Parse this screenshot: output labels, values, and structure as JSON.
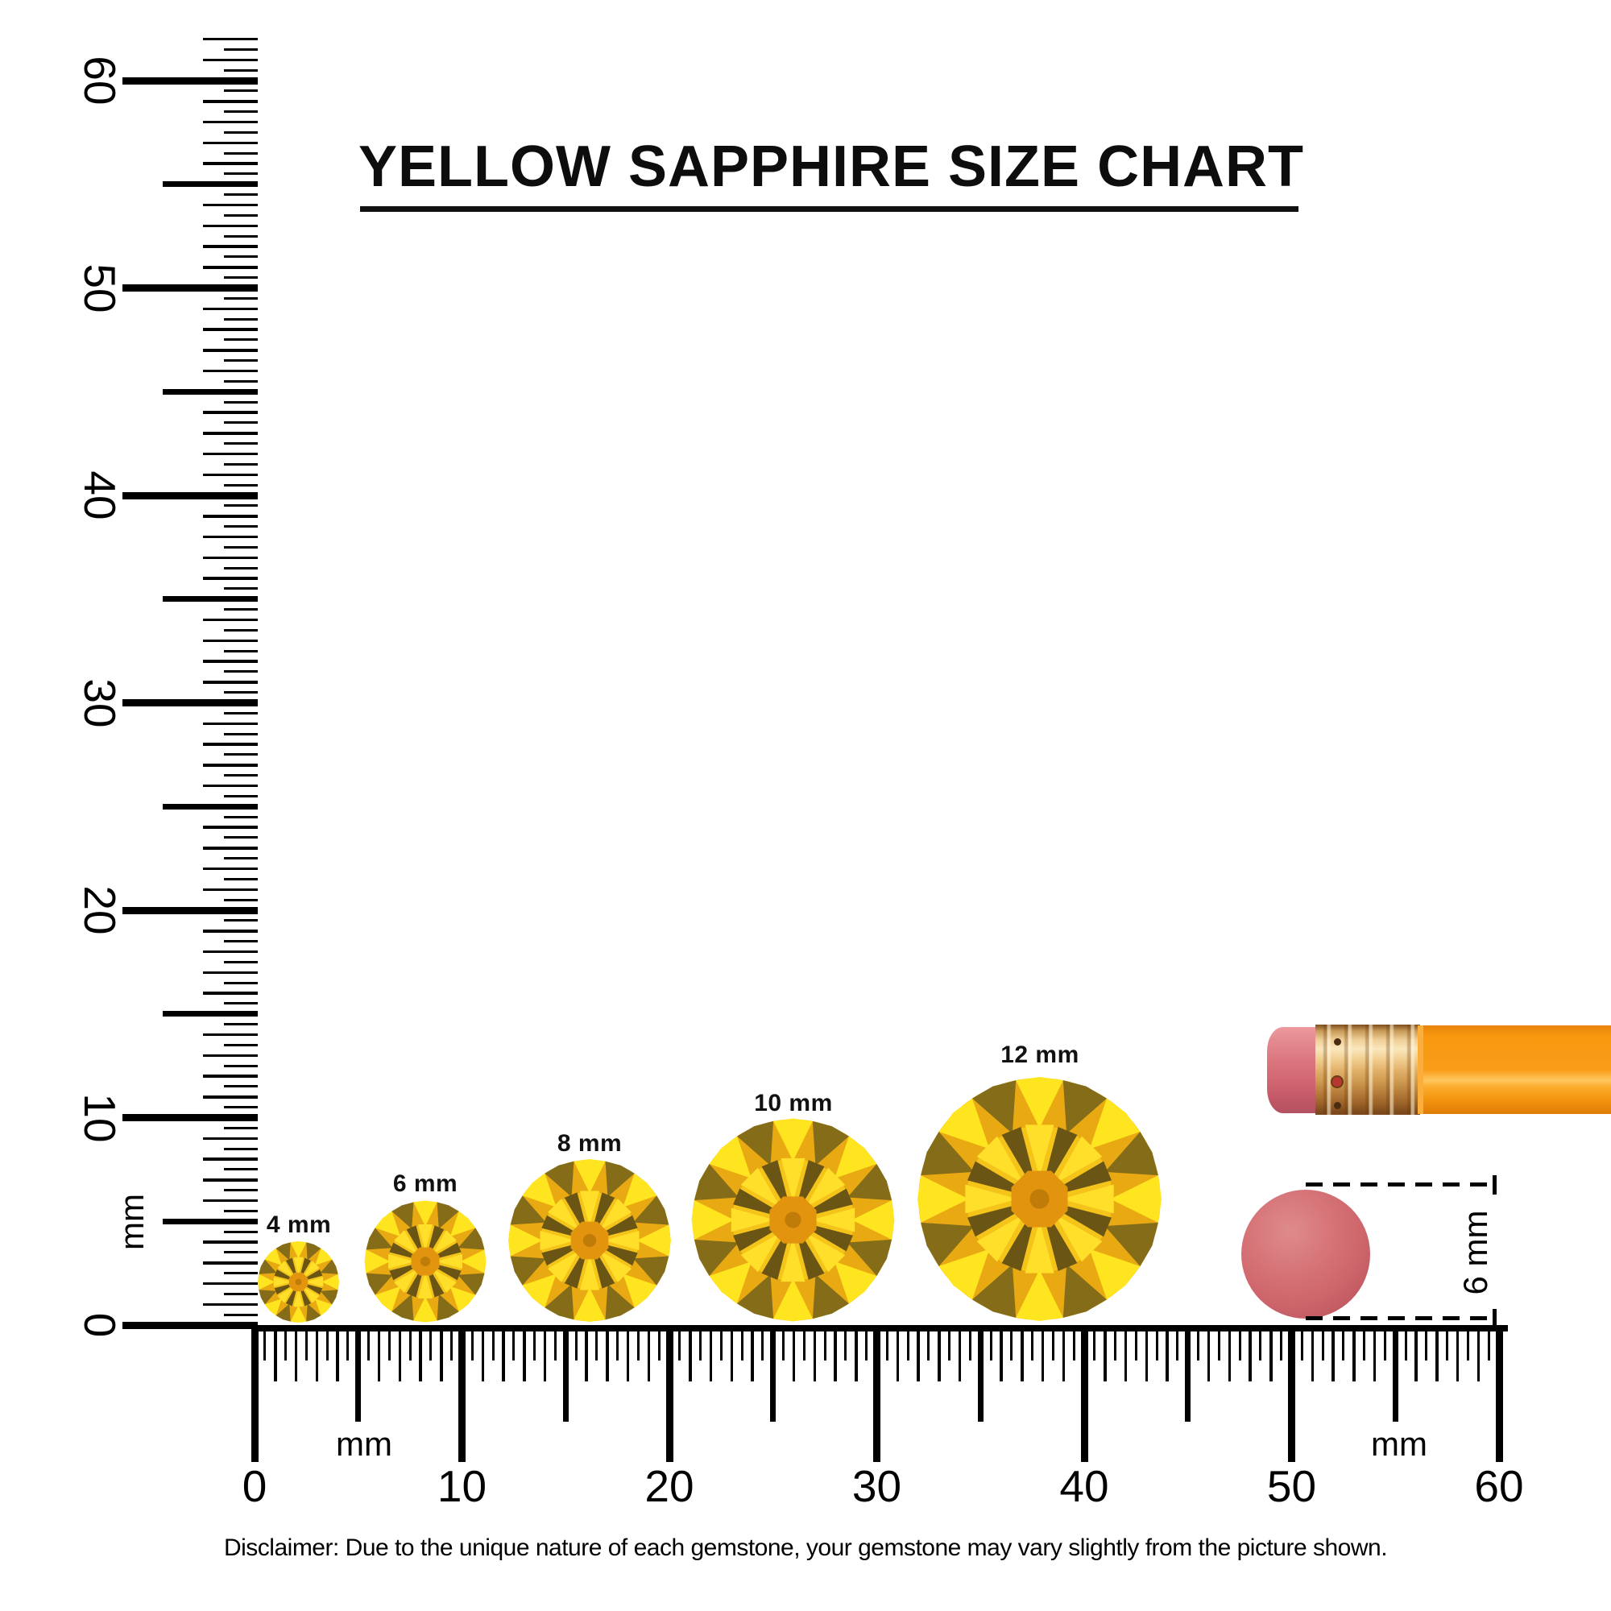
{
  "title": {
    "text": "YELLOW SAPPHIRE SIZE CHART"
  },
  "rulers": {
    "unit_label": "mm",
    "range_mm": [
      0,
      60
    ],
    "tick_step_mm": 0.5,
    "vertical": {
      "numbers": [
        "0",
        "10",
        "20",
        "30",
        "40",
        "50",
        "60"
      ]
    },
    "horizontal": {
      "numbers": [
        "0",
        "10",
        "20",
        "30",
        "40",
        "50",
        "60"
      ]
    }
  },
  "gems": [
    {
      "label": "4 mm",
      "size_mm": 4
    },
    {
      "label": "6 mm",
      "size_mm": 6
    },
    {
      "label": "8 mm",
      "size_mm": 8
    },
    {
      "label": "10 mm",
      "size_mm": 10
    },
    {
      "label": "12 mm",
      "size_mm": 12
    }
  ],
  "eraser_annotation": {
    "label": "6 mm",
    "diameter_mm": 6
  },
  "disclaimer": "Disclaimer: Due to the unique nature of each gemstone, your gemstone may vary slightly from the picture shown.",
  "colors": {
    "ink": "#000000",
    "gem": {
      "bright": "#FFE51F",
      "dark": "#846C19",
      "rim": "#E9A912",
      "ring": "#F5C41A",
      "deep": "#6A5514",
      "ray": "#FFDF2A",
      "table": "#E2940E",
      "culet": "#C07C08"
    },
    "pencil_body": "#F8980F",
    "pencil_highlight": "#FFC65E",
    "ferrule": "#E9C382",
    "eraser_pink": "#D06A6E"
  }
}
